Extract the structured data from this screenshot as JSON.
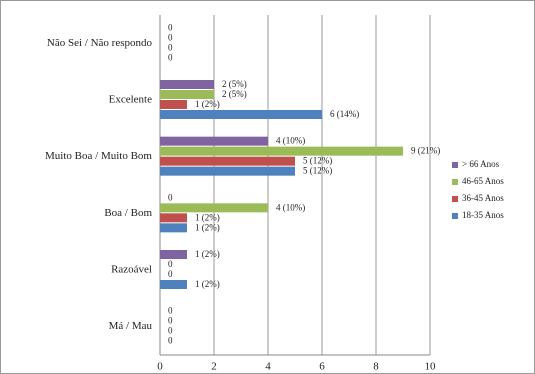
{
  "chart_data": {
    "type": "hbar",
    "categories": [
      "Não Sei / Não respondo",
      "Excelente",
      "Muito Boa / Muito Bom",
      "Boa / Bom",
      "Razoável",
      "Má / Mau"
    ],
    "series": [
      {
        "name": "18-35 Anos",
        "color": "#4f81bd",
        "values": [
          0,
          6,
          5,
          1,
          1,
          0
        ],
        "value_labels": [
          "0",
          "6 (14%)",
          "5 (12%)",
          "1 (2%)",
          "1 (2%)",
          "0"
        ]
      },
      {
        "name": "36-45 Anos",
        "color": "#c0504d",
        "values": [
          0,
          1,
          5,
          1,
          0,
          0
        ],
        "value_labels": [
          "0",
          "1 (2%)",
          "5 (12%)",
          "1 (2%)",
          "0",
          "0"
        ]
      },
      {
        "name": "46-65 Anos",
        "color": "#9bbb59",
        "values": [
          0,
          2,
          9,
          4,
          0,
          0
        ],
        "value_labels": [
          "0",
          "2 (5%)",
          "9 (21%)",
          "4 (10%)",
          "0",
          "0"
        ]
      },
      {
        "name": "> 66 Anos",
        "color": "#8064a2",
        "values": [
          0,
          2,
          4,
          0,
          1,
          0
        ],
        "value_labels": [
          "0",
          "2 (5%)",
          "4 (10%)",
          "0",
          "1 (2%)",
          "0"
        ]
      }
    ],
    "xlim": [
      0,
      10
    ],
    "xticks": [
      0,
      2,
      4,
      6,
      8,
      10
    ],
    "grid": true
  }
}
